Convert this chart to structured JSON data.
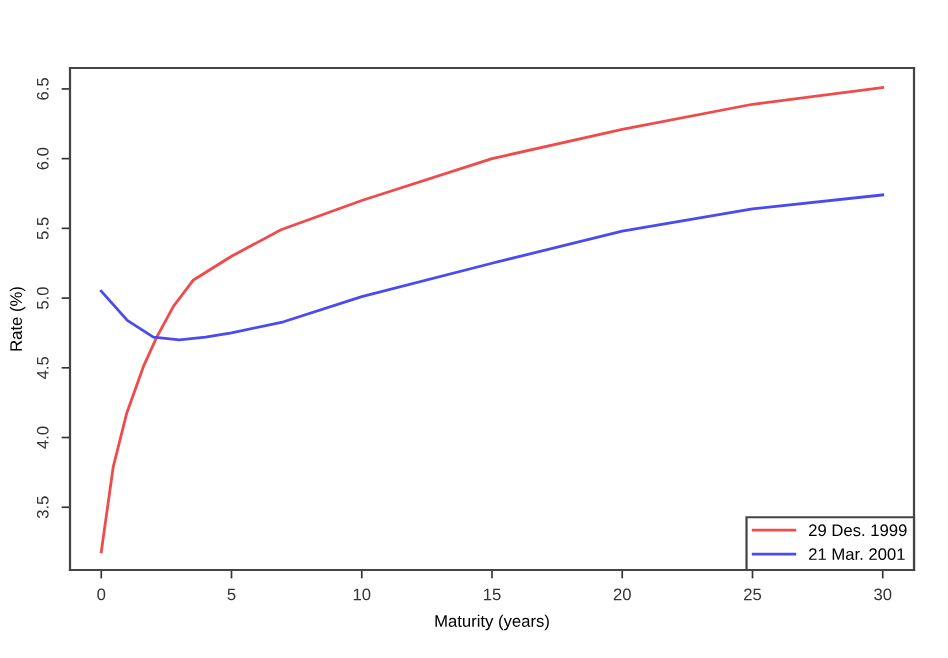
{
  "chart_data": {
    "type": "line",
    "xlabel": "Maturity (years)",
    "ylabel": "Rate (%)",
    "xlim": [
      -1.2,
      31.2
    ],
    "ylim": [
      3.05,
      6.65
    ],
    "xticks": [
      0,
      5,
      10,
      15,
      20,
      25,
      30
    ],
    "yticks": [
      3.5,
      {
        "value": 4,
        "label": "4.0"
      },
      4.5,
      {
        "value": 5,
        "label": "5.0"
      },
      5.5,
      {
        "value": 6,
        "label": "6.0"
      },
      6.5
    ],
    "legend": "bottom right",
    "grid": false,
    "marker": "none",
    "line_style": "solid",
    "series": [
      {
        "name": "29 Des. 1999",
        "color": "#f04a4a",
        "x": [
          0,
          0.46,
          0.97,
          1.62,
          2.13,
          2.77,
          3.54,
          5,
          6.9,
          10,
          15,
          20,
          25,
          30
        ],
        "values": [
          3.18,
          3.79,
          4.17,
          4.51,
          4.72,
          4.94,
          5.13,
          5.3,
          5.49,
          5.7,
          6.0,
          6.21,
          6.39,
          6.51
        ]
      },
      {
        "name": "21 Mar. 2001",
        "color": "#4a4af0",
        "x": [
          0,
          1,
          2,
          3,
          4,
          5,
          7,
          10,
          15,
          20,
          25,
          30
        ],
        "values": [
          5.05,
          4.84,
          4.72,
          4.7,
          4.72,
          4.75,
          4.83,
          5.01,
          5.25,
          5.48,
          5.64,
          5.74
        ]
      }
    ]
  }
}
